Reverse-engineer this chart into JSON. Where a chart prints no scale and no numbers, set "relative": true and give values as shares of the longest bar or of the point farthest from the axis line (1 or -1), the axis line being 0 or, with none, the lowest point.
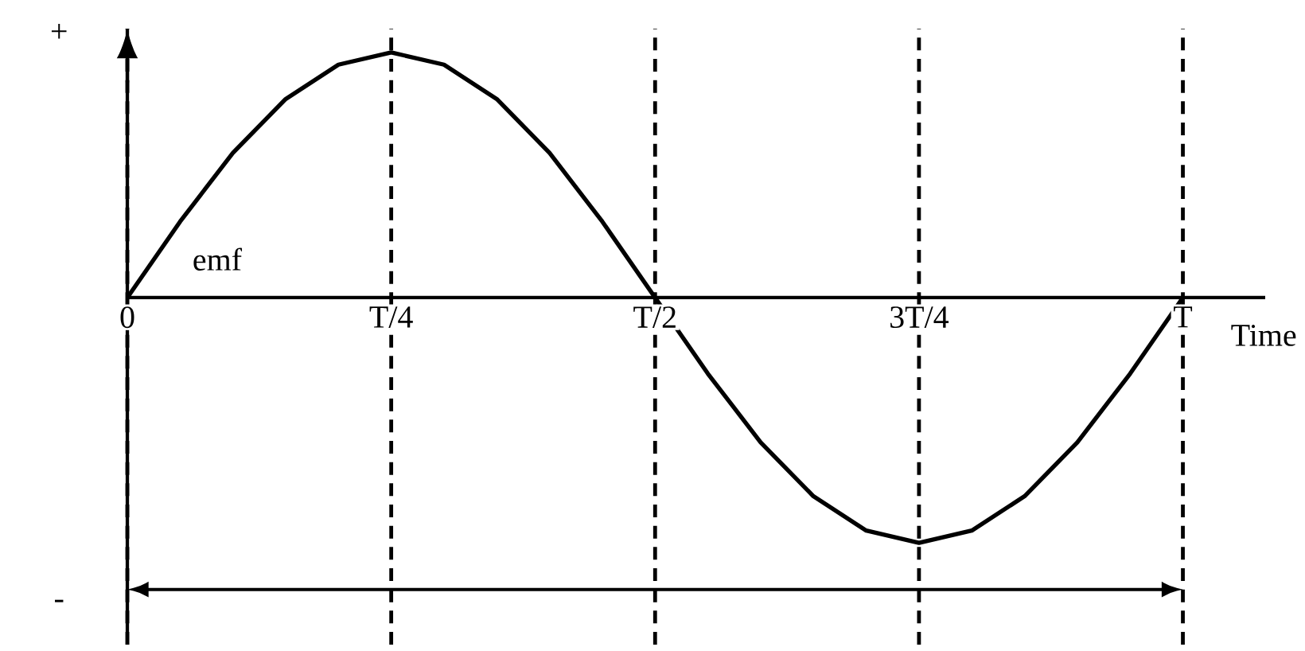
{
  "chart_data": {
    "type": "line",
    "relative": true,
    "xlabel": "Time",
    "ylabel": "emf",
    "categories": [
      "0",
      null,
      null,
      null,
      null,
      "T/4",
      null,
      null,
      null,
      null,
      "T/2",
      null,
      null,
      null,
      null,
      "3T/4",
      null,
      null,
      null,
      null,
      "T"
    ],
    "series": [
      {
        "color": "#000000",
        "values": [
          0,
          0.31,
          0.59,
          0.81,
          0.95,
          1,
          0.95,
          0.81,
          0.59,
          0.31,
          0,
          -0.31,
          -0.59,
          -0.81,
          -0.95,
          -1,
          -0.95,
          -0.81,
          -0.59,
          -0.31,
          0
        ]
      }
    ],
    "grid": "x",
    "annotations": [
      "+",
      "-"
    ],
    "line_style": "solid"
  }
}
